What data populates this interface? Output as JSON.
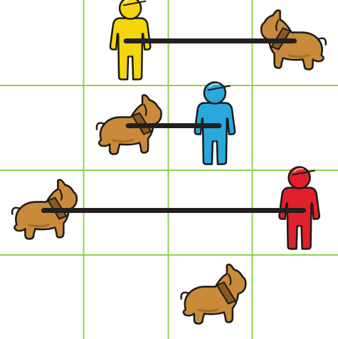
{
  "grid": {
    "rows": 4,
    "cols": 4,
    "line_color": "#8fd14f"
  },
  "colors": {
    "leash": "#231f20",
    "dog_body": "#c98a3a",
    "dog_shade": "#a86d28",
    "dog_collar": "#8a5a1e",
    "outline": "#1a1a1a"
  },
  "pieces": [
    {
      "kind": "person",
      "name": "yellow-person",
      "color": "#f5d60a",
      "row": 0,
      "col": 1
    },
    {
      "kind": "dog",
      "name": "dog-top-right",
      "row": 0,
      "col": 3,
      "facing": "left"
    },
    {
      "kind": "person",
      "name": "blue-person",
      "color": "#29a8dc",
      "row": 1,
      "col": 2
    },
    {
      "kind": "dog",
      "name": "dog-center-left",
      "row": 1,
      "col": 1,
      "facing": "right"
    },
    {
      "kind": "person",
      "name": "red-person",
      "color": "#e0202a",
      "row": 2,
      "col": 3
    },
    {
      "kind": "dog",
      "name": "dog-left",
      "row": 2,
      "col": 0,
      "facing": "right"
    },
    {
      "kind": "dog",
      "name": "dog-bottom",
      "row": 3,
      "col": 2,
      "facing": "right"
    }
  ],
  "leashes": [
    {
      "name": "leash-yellow",
      "from": "yellow-person",
      "to": "dog-top-right"
    },
    {
      "name": "leash-blue",
      "from": "blue-person",
      "to": "dog-center-left"
    },
    {
      "name": "leash-red",
      "from": "red-person",
      "to": "dog-left"
    }
  ]
}
